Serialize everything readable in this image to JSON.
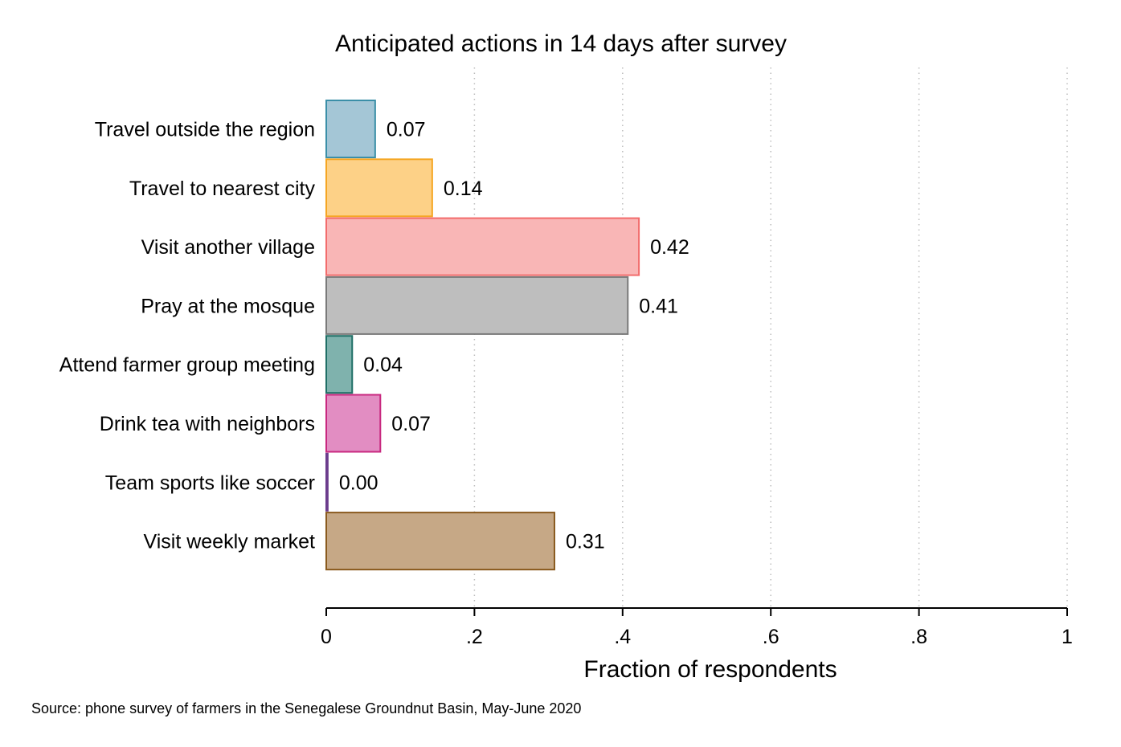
{
  "chart_data": {
    "type": "bar",
    "orientation": "horizontal",
    "title": "Anticipated actions in 14 days after survey",
    "xlabel": "Fraction of respondents",
    "ylabel": "",
    "xlim": [
      0,
      1
    ],
    "x_ticks": [
      0,
      0.2,
      0.4,
      0.6,
      0.8,
      1
    ],
    "x_tick_labels": [
      "0",
      ".2",
      ".4",
      ".6",
      ".8",
      "1"
    ],
    "grid": "vertical dotted",
    "categories": [
      "Travel outside the region",
      "Travel to nearest city",
      "Visit another village",
      "Pray at the mosque",
      "Attend farmer group meeting",
      "Drink tea with neighbors",
      "Team sports like soccer",
      "Visit weekly market"
    ],
    "values": [
      0.066,
      0.143,
      0.422,
      0.407,
      0.035,
      0.073,
      0.002,
      0.308
    ],
    "value_labels": [
      "0.07",
      "0.14",
      "0.42",
      "0.41",
      "0.04",
      "0.07",
      "0.00",
      "0.31"
    ],
    "fill_colors": [
      "#a4c6d6",
      "#fdd187",
      "#f9b6b6",
      "#bebebe",
      "#7fb2ad",
      "#e28dc2",
      "#b08cc4",
      "#c6a886"
    ],
    "stroke_colors": [
      "#3b8fa8",
      "#f5a623",
      "#f26c6c",
      "#7a7a7a",
      "#1f6f66",
      "#c8287f",
      "#6b3c8c",
      "#8a5a1e"
    ],
    "note": "Source: phone survey of farmers in the Senegalese Groundnut Basin, May-June 2020"
  }
}
